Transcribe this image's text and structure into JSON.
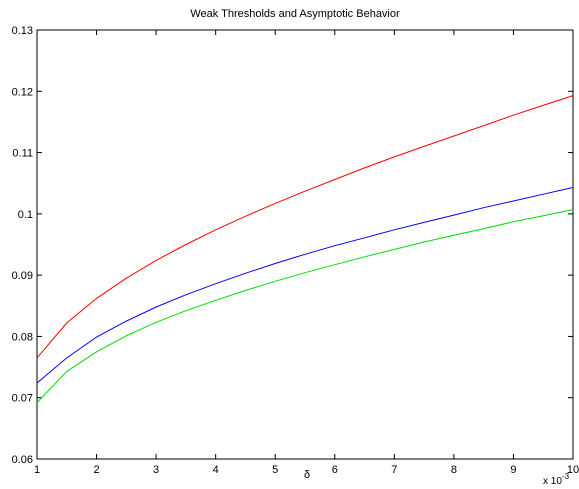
{
  "chart_data": {
    "type": "line",
    "title": "Weak Thresholds and Asymptotic Behavior",
    "xlabel": "δ",
    "ylabel": "",
    "x_exponent_label": "x 10",
    "x_exponent_power": "-3",
    "xlim": [
      1,
      10
    ],
    "ylim": [
      0.06,
      0.13
    ],
    "x_ticks": [
      1,
      2,
      3,
      4,
      5,
      6,
      7,
      8,
      9,
      10
    ],
    "y_ticks": [
      0.06,
      0.07,
      0.08,
      0.09,
      0.1,
      0.11,
      0.12,
      0.13
    ],
    "y_tick_labels": [
      "0.06",
      "0.07",
      "0.08",
      "0.09",
      "0.1",
      "0.11",
      "0.12",
      "0.13"
    ],
    "grid": false,
    "x": [
      1,
      1.5,
      2,
      2.5,
      3,
      3.5,
      4,
      4.5,
      5,
      5.5,
      6,
      6.5,
      7,
      7.5,
      8,
      8.5,
      9,
      9.5,
      10
    ],
    "series": [
      {
        "color": "#ff0000",
        "values": [
          0.0765,
          0.0822,
          0.0862,
          0.0895,
          0.0924,
          0.095,
          0.0974,
          0.0996,
          0.1017,
          0.1037,
          0.1056,
          0.1075,
          0.1093,
          0.111,
          0.1127,
          0.1144,
          0.1161,
          0.1177,
          0.1193
        ]
      },
      {
        "color": "#0000ff",
        "values": [
          0.0724,
          0.0765,
          0.0799,
          0.0825,
          0.0848,
          0.0868,
          0.0886,
          0.0903,
          0.0919,
          0.0934,
          0.0948,
          0.0961,
          0.0974,
          0.0986,
          0.0998,
          0.101,
          0.1021,
          0.1032,
          0.1043
        ]
      },
      {
        "color": "#00dd00",
        "values": [
          0.0692,
          0.0743,
          0.0775,
          0.0801,
          0.0823,
          0.0842,
          0.0859,
          0.0875,
          0.089,
          0.0904,
          0.0917,
          0.093,
          0.0942,
          0.0954,
          0.0965,
          0.0976,
          0.0987,
          0.0997,
          0.1007
        ]
      }
    ]
  }
}
